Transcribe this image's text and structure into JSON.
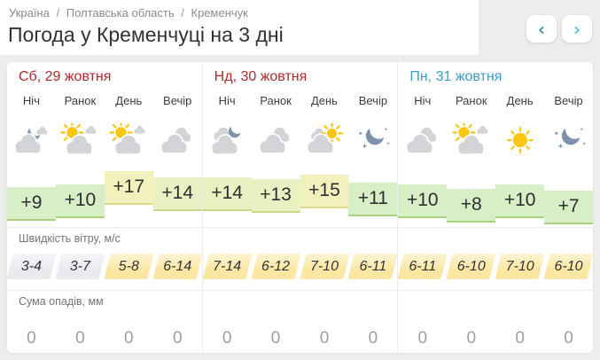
{
  "breadcrumb": {
    "separator": "/",
    "items": [
      "Україна",
      "Полтавська область",
      "Кременчук"
    ]
  },
  "header": {
    "title": "Погода у Кременчуці на 3 дні",
    "prev_icon": "‹",
    "next_icon": "›"
  },
  "labels": {
    "wind": "Швидкість вітру, м/с",
    "precip": "Сума опадів, мм"
  },
  "colors": {
    "weekend_title": "#b3292e",
    "weekday_title": "#3b9fcc",
    "cloud": "#d2d4d7",
    "moon": "#7e92ab",
    "sun": "#fbc712",
    "temp_green": "#d8eec7",
    "temp_yellow_green": "#e9f1c3",
    "temp_yellow": "#f2f0bd",
    "wind_calm": "#e8eaee",
    "wind_windy": "#fbe7a1"
  },
  "days": [
    {
      "title": "Сб, 29 жовтня",
      "color": "#b3292e",
      "periods": [
        {
          "label": "Ніч",
          "icon": "moon-cloud",
          "temp": "+9",
          "wind": "3-4",
          "wind_level": "calm",
          "precip": "0"
        },
        {
          "label": "Ранок",
          "icon": "sun-clouds",
          "temp": "+10",
          "wind": "3-7",
          "wind_level": "calm",
          "precip": "0"
        },
        {
          "label": "День",
          "icon": "sun-clouds",
          "temp": "+17",
          "wind": "5-8",
          "wind_level": "windy",
          "precip": "0"
        },
        {
          "label": "Вечір",
          "icon": "clouds",
          "temp": "+14",
          "wind": "6-14",
          "wind_level": "windy",
          "precip": "0"
        }
      ]
    },
    {
      "title": "Нд, 30 жовтня",
      "color": "#b3292e",
      "periods": [
        {
          "label": "Ніч",
          "icon": "cloud-moon",
          "temp": "+14",
          "wind": "7-14",
          "wind_level": "windy",
          "precip": "0"
        },
        {
          "label": "Ранок",
          "icon": "clouds",
          "temp": "+13",
          "wind": "6-12",
          "wind_level": "windy",
          "precip": "0"
        },
        {
          "label": "День",
          "icon": "cloud-sun",
          "temp": "+15",
          "wind": "7-10",
          "wind_level": "windy",
          "precip": "0"
        },
        {
          "label": "Вечір",
          "icon": "moon-stars",
          "temp": "+11",
          "wind": "6-11",
          "wind_level": "windy",
          "precip": "0"
        }
      ]
    },
    {
      "title": "Пн, 31 жовтня",
      "color": "#3b9fcc",
      "periods": [
        {
          "label": "Ніч",
          "icon": "clouds",
          "temp": "+10",
          "wind": "6-11",
          "wind_level": "windy",
          "precip": "0"
        },
        {
          "label": "Ранок",
          "icon": "sun-clouds",
          "temp": "+8",
          "wind": "6-10",
          "wind_level": "windy",
          "precip": "0"
        },
        {
          "label": "День",
          "icon": "sun",
          "temp": "+10",
          "wind": "7-10",
          "wind_level": "windy",
          "precip": "0"
        },
        {
          "label": "Вечір",
          "icon": "moon-stars",
          "temp": "+7",
          "wind": "6-10",
          "wind_level": "windy",
          "precip": "0"
        }
      ]
    }
  ]
}
